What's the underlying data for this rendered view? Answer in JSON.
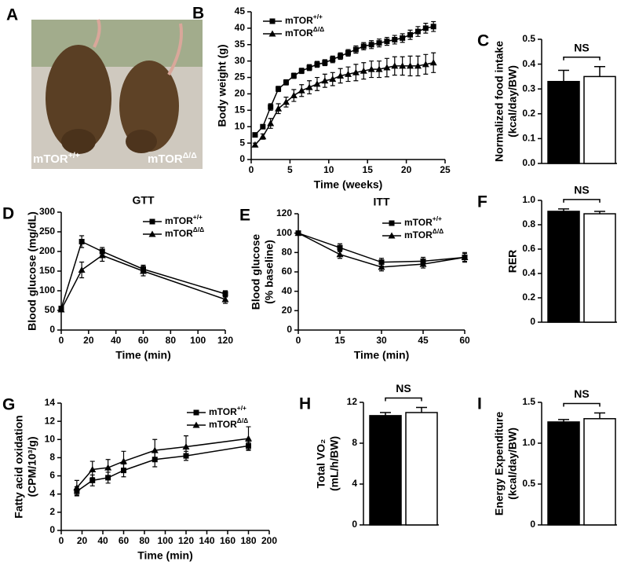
{
  "photo": {
    "label": "A",
    "captions": [
      "mTOR+/+",
      "mTORΔ/Δ"
    ]
  },
  "chart_data": [
    {
      "type": "line",
      "label": "B",
      "ylabel": [
        "Body weight (g)"
      ],
      "xlabel": "Time (weeks)",
      "xlim": [
        0,
        25
      ],
      "xticks": [
        0,
        5,
        10,
        15,
        20,
        25
      ],
      "ylim": [
        0,
        45
      ],
      "yticks": [
        0,
        5,
        10,
        15,
        20,
        25,
        30,
        35,
        40,
        45
      ],
      "legend": "upper left",
      "x": [
        0.5,
        1.5,
        2.5,
        3.5,
        4.5,
        5.5,
        6.5,
        7.5,
        8.5,
        9.5,
        10.5,
        11.5,
        12.5,
        13.5,
        14.5,
        15.5,
        16.5,
        17.5,
        18.5,
        19.5,
        20.5,
        21.5,
        22.5,
        23.5
      ],
      "series": [
        {
          "name": "mTOR+/+",
          "color": "#000000",
          "marker": "square",
          "values": [
            7.5,
            10,
            16,
            21.5,
            23.5,
            25.5,
            27,
            28,
            29,
            29.5,
            30.5,
            31.5,
            32.5,
            33.5,
            34.5,
            35,
            35.5,
            36,
            36.5,
            37,
            38,
            39,
            40,
            40.5
          ],
          "errors": [
            0.5,
            0.6,
            1,
            0.8,
            0.8,
            0.8,
            0.8,
            0.9,
            0.9,
            0.9,
            1,
            1,
            1,
            1.1,
            1.1,
            1.2,
            1.2,
            1.2,
            1.3,
            1.3,
            1.4,
            1.5,
            1.5,
            1.5
          ]
        },
        {
          "name": "mTORΔ/Δ",
          "color": "#000000",
          "marker": "triangle",
          "values": [
            4.5,
            7,
            11,
            15.5,
            17.5,
            19.5,
            21,
            22,
            23,
            24,
            24.5,
            25.5,
            26,
            26.5,
            27,
            27.5,
            27.5,
            28,
            28.5,
            28.5,
            28.5,
            28.5,
            29,
            29.5
          ],
          "errors": [
            0.5,
            0.8,
            1.5,
            1.5,
            1.5,
            1.8,
            1.8,
            2,
            2,
            2,
            2,
            2.2,
            2.2,
            2.5,
            2.5,
            2.5,
            2.5,
            2.8,
            2.8,
            2.8,
            3,
            3,
            3,
            3
          ]
        }
      ]
    },
    {
      "type": "bar",
      "label": "C",
      "ylabel": [
        "Normalized food intake",
        "(kcal/day/BW)"
      ],
      "ylim": [
        0,
        0.5
      ],
      "yticks": [
        {
          "value": 0,
          "label": "0.0"
        },
        0.1,
        0.2,
        0.3,
        0.4,
        0.5
      ],
      "annotation": "NS",
      "categories": [
        null,
        null
      ],
      "values": [
        0.33,
        0.35
      ],
      "errors": [
        0.045,
        0.04
      ],
      "colors": [
        "#000000",
        "#ffffff"
      ]
    },
    {
      "type": "line",
      "label": "D",
      "title": "GTT",
      "ylabel": [
        "Blood glucose (mg/dL)"
      ],
      "xlabel": "Time (min)",
      "xlim": [
        0,
        120
      ],
      "xticks": [
        0,
        20,
        40,
        60,
        80,
        100,
        120
      ],
      "ylim": [
        0,
        300
      ],
      "yticks": [
        0,
        50,
        100,
        150,
        200,
        250,
        300
      ],
      "legend": "upper right",
      "x": [
        0,
        15,
        30,
        60,
        120
      ],
      "series": [
        {
          "name": "mTOR+/+",
          "color": "#000000",
          "marker": "square",
          "values": [
            55,
            225,
            200,
            155,
            92
          ],
          "errors": [
            5,
            15,
            10,
            10,
            8
          ]
        },
        {
          "name": "mTORΔ/Δ",
          "color": "#000000",
          "marker": "triangle",
          "values": [
            52,
            153,
            190,
            150,
            78
          ],
          "errors": [
            5,
            20,
            15,
            12,
            10
          ]
        }
      ]
    },
    {
      "type": "line",
      "label": "E",
      "title": "ITT",
      "ylabel": [
        "Blood glucose",
        "(% baseline)"
      ],
      "xlabel": "Time (min)",
      "xlim": [
        0,
        60
      ],
      "xticks": [
        0,
        15,
        30,
        45,
        60
      ],
      "ylim": [
        0,
        120
      ],
      "yticks": [
        0,
        20,
        40,
        60,
        80,
        100,
        120
      ],
      "legend": "upper right",
      "x": [
        0,
        15,
        30,
        45,
        60
      ],
      "series": [
        {
          "name": "mTOR+/+",
          "color": "#000000",
          "marker": "square",
          "values": [
            100,
            85,
            70,
            71,
            75
          ],
          "errors": [
            1,
            4,
            4,
            4,
            5
          ]
        },
        {
          "name": "mTORΔ/Δ",
          "color": "#000000",
          "marker": "triangle",
          "values": [
            100,
            78,
            65,
            68,
            75
          ],
          "errors": [
            1,
            4,
            4,
            4,
            4
          ]
        }
      ]
    },
    {
      "type": "bar",
      "label": "F",
      "ylabel": [
        "RER"
      ],
      "ylim": [
        0,
        1
      ],
      "yticks": [
        0,
        0.2,
        0.4,
        0.6,
        0.8,
        {
          "value": 1,
          "label": "1.0"
        }
      ],
      "annotation": "NS",
      "categories": [
        null,
        null
      ],
      "values": [
        0.91,
        0.89
      ],
      "errors": [
        0.02,
        0.02
      ],
      "colors": [
        "#000000",
        "#ffffff"
      ]
    },
    {
      "type": "line",
      "label": "G",
      "ylabel": [
        "Fatty acid oxidation",
        "(CPM/10³/g)"
      ],
      "xlabel": "Time (min)",
      "xlim": [
        0,
        200
      ],
      "xticks": [
        0,
        20,
        40,
        60,
        80,
        100,
        120,
        140,
        160,
        180,
        200
      ],
      "ylim": [
        0,
        14
      ],
      "yticks": [
        0,
        2,
        4,
        6,
        8,
        10,
        12,
        14
      ],
      "legend": "upper right",
      "x": [
        15,
        30,
        45,
        60,
        90,
        120,
        180
      ],
      "series": [
        {
          "name": "mTOR+/+",
          "color": "#000000",
          "marker": "square",
          "values": [
            4.3,
            5.5,
            5.8,
            6.6,
            7.8,
            8.2,
            9.3
          ],
          "errors": [
            0.5,
            0.6,
            0.6,
            0.7,
            0.8,
            0.5,
            0.4
          ]
        },
        {
          "name": "mTORΔ/Δ",
          "color": "#000000",
          "marker": "triangle",
          "values": [
            4.7,
            6.7,
            6.9,
            7.6,
            8.8,
            9.2,
            10.1
          ],
          "errors": [
            0.8,
            0.9,
            0.9,
            1.1,
            1.2,
            1.2,
            1.3
          ]
        }
      ]
    },
    {
      "type": "bar",
      "label": "H",
      "ylabel": [
        "Total VO₂",
        "(mL/h/BW)"
      ],
      "ylim": [
        0,
        12
      ],
      "yticks": [
        0,
        4,
        8,
        12
      ],
      "annotation": "NS",
      "categories": [
        null,
        null
      ],
      "values": [
        10.7,
        11.0
      ],
      "errors": [
        0.3,
        0.5
      ],
      "colors": [
        "#000000",
        "#ffffff"
      ]
    },
    {
      "type": "bar",
      "label": "I",
      "ylabel": [
        "Energy Expenditure",
        "(kcal/day/BW)"
      ],
      "ylim": [
        0,
        1.5
      ],
      "yticks": [
        0,
        0.5,
        {
          "value": 1,
          "label": "1.0"
        },
        1.5
      ],
      "annotation": "NS",
      "categories": [
        null,
        null
      ],
      "values": [
        1.26,
        1.3
      ],
      "errors": [
        0.03,
        0.07
      ],
      "colors": [
        "#000000",
        "#ffffff"
      ]
    }
  ]
}
